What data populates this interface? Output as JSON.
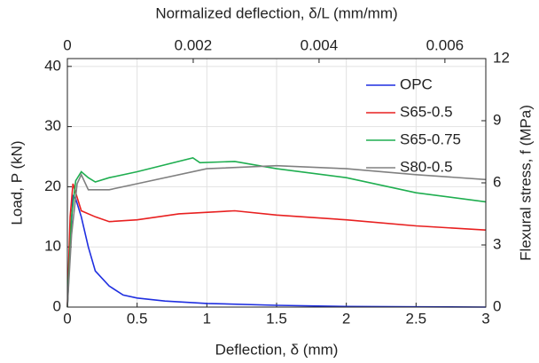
{
  "chart_data": {
    "type": "line",
    "xlabel": "Deflection, δ (mm)",
    "ylabel": "Load, P (kN)",
    "x2label": "Normalized deflection, δ/L (mm/mm)",
    "y2label": "Flexural stress, f (MPa)",
    "xlim": [
      0,
      3
    ],
    "xticks": [
      0,
      0.5,
      1,
      1.5,
      2,
      2.5,
      3
    ],
    "ylim": [
      0,
      41.3
    ],
    "yticks": [
      0,
      10,
      20,
      30,
      40
    ],
    "x2lim": [
      0,
      0.00665
    ],
    "x2ticks": [
      0,
      0.002,
      0.004,
      0.006
    ],
    "y2lim": [
      0,
      12
    ],
    "y2ticks": [
      0,
      3,
      6,
      9,
      12
    ],
    "grid": true,
    "legend": "upper right",
    "series": [
      {
        "name": "OPC",
        "color": "#1f2fe0",
        "x": [
          0,
          0.02,
          0.04,
          0.06,
          0.1,
          0.15,
          0.2,
          0.3,
          0.4,
          0.5,
          0.7,
          1,
          1.5,
          2,
          2.5,
          3
        ],
        "values": [
          0,
          10,
          18.5,
          18,
          15,
          10,
          6,
          3.5,
          2,
          1.5,
          1,
          0.6,
          0.3,
          0.1,
          0.05,
          0
        ]
      },
      {
        "name": "S65-0.5",
        "color": "#e82020",
        "x": [
          0,
          0.02,
          0.04,
          0.06,
          0.1,
          0.2,
          0.3,
          0.5,
          0.8,
          1.2,
          1.5,
          2,
          2.5,
          3
        ],
        "values": [
          0,
          15,
          20.5,
          19,
          16,
          15,
          14.2,
          14.5,
          15.5,
          16,
          15.3,
          14.5,
          13.5,
          12.8
        ]
      },
      {
        "name": "S65-0.75",
        "color": "#1fae50",
        "x": [
          0,
          0.03,
          0.06,
          0.1,
          0.15,
          0.2,
          0.3,
          0.5,
          0.9,
          0.95,
          1.2,
          1.5,
          2,
          2.5,
          3
        ],
        "values": [
          0,
          15,
          21,
          22.5,
          21.5,
          20.8,
          21.5,
          22.5,
          24.8,
          24,
          24.2,
          23,
          21.5,
          19,
          17.5
        ]
      },
      {
        "name": "S80-0.5",
        "color": "#808080",
        "x": [
          0,
          0.03,
          0.07,
          0.1,
          0.15,
          0.3,
          0.5,
          1,
          1.5,
          2,
          2.5,
          3
        ],
        "values": [
          0,
          12,
          20.5,
          22,
          19.5,
          19.5,
          20.5,
          23,
          23.5,
          23,
          22,
          21.2
        ]
      }
    ]
  }
}
